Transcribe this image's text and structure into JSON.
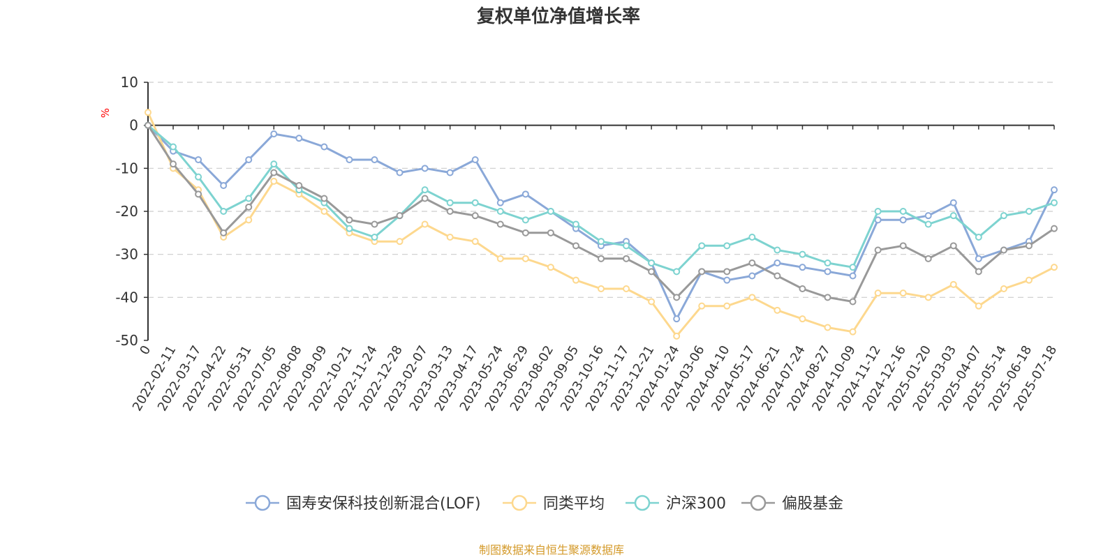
{
  "chart_data": {
    "type": "line",
    "title": "复权单位净值增长率",
    "unit_label": "%",
    "ylim": [
      -50,
      10
    ],
    "y_ticks": [
      10,
      0,
      -10,
      -20,
      -30,
      -40,
      -50
    ],
    "grid": true,
    "legend_position": "bottom",
    "source": "制图数据来自恒生聚源数据库",
    "x_labels": [
      "0",
      "2022-02-11",
      "2022-03-17",
      "2022-04-22",
      "2022-05-31",
      "2022-07-05",
      "2022-08-08",
      "2022-09-09",
      "2022-10-21",
      "2022-11-24",
      "2022-12-28",
      "2023-02-07",
      "2023-03-13",
      "2023-04-17",
      "2023-05-24",
      "2023-06-29",
      "2023-08-02",
      "2023-09-05",
      "2023-10-16",
      "2023-11-17",
      "2023-12-21",
      "2024-01-24",
      "2024-03-06",
      "2024-04-10",
      "2024-05-17",
      "2024-06-21",
      "2024-07-24",
      "2024-08-27",
      "2024-10-09",
      "2024-11-12",
      "2024-12-16",
      "2025-01-20",
      "2025-03-03",
      "2025-04-07",
      "2025-05-14",
      "2025-06-18",
      "2025-07-18"
    ],
    "series": [
      {
        "name": "国寿安保科技创新混合(LOF)",
        "color": "#8aa8d8",
        "values": [
          0,
          -6,
          -8,
          -14,
          -8,
          -2,
          -3,
          -5,
          -8,
          -8,
          -11,
          -10,
          -11,
          -8,
          -18,
          -16,
          -20,
          -24,
          -28,
          -27,
          -32,
          -45,
          -34,
          -36,
          -35,
          -32,
          -33,
          -34,
          -35,
          -22,
          -22,
          -21,
          -18,
          -31,
          -29,
          -27,
          -15
        ]
      },
      {
        "name": "同类平均",
        "color": "#fdd88e",
        "values": [
          3,
          -10,
          -15,
          -26,
          -22,
          -13,
          -16,
          -20,
          -25,
          -27,
          -27,
          -23,
          -26,
          -27,
          -31,
          -31,
          -33,
          -36,
          -38,
          -38,
          -41,
          -49,
          -42,
          -42,
          -40,
          -43,
          -45,
          -47,
          -48,
          -39,
          -39,
          -40,
          -37,
          -42,
          -38,
          -36,
          -33
        ]
      },
      {
        "name": "沪深300",
        "color": "#7dd3d0",
        "values": [
          0,
          -5,
          -12,
          -20,
          -17,
          -9,
          -15,
          -18,
          -24,
          -26,
          -21,
          -15,
          -18,
          -18,
          -20,
          -22,
          -20,
          -23,
          -27,
          -28,
          -32,
          -34,
          -28,
          -28,
          -26,
          -29,
          -30,
          -32,
          -33,
          -20,
          -20,
          -23,
          -21,
          -26,
          -21,
          -20,
          -18
        ]
      },
      {
        "name": "偏股基金",
        "color": "#999999",
        "values": [
          0,
          -9,
          -16,
          -25,
          -19,
          -11,
          -14,
          -17,
          -22,
          -23,
          -21,
          -17,
          -20,
          -21,
          -23,
          -25,
          -25,
          -28,
          -31,
          -31,
          -34,
          -40,
          -34,
          -34,
          -32,
          -35,
          -38,
          -40,
          -41,
          -29,
          -28,
          -31,
          -28,
          -34,
          -29,
          -28,
          -24
        ]
      }
    ]
  }
}
